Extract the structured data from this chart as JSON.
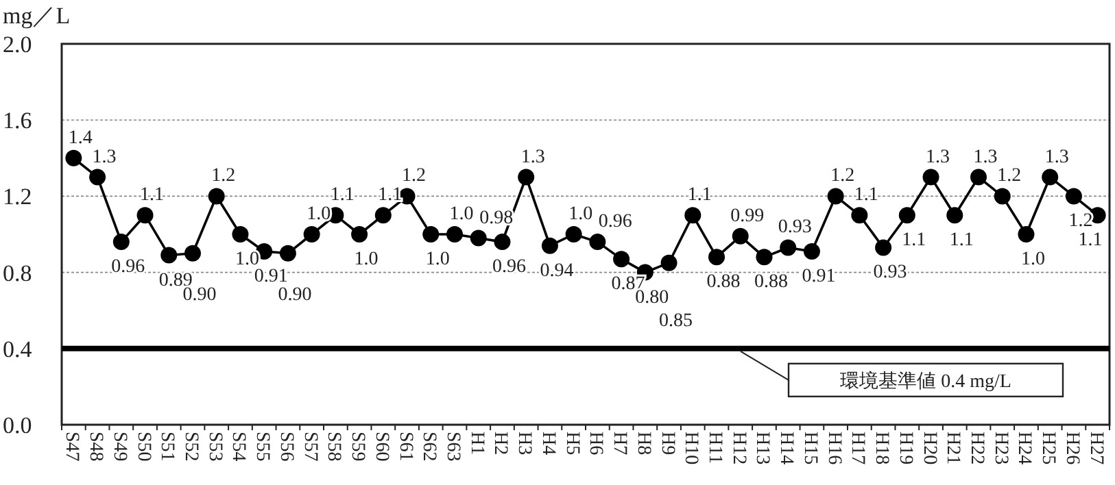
{
  "chart_data": {
    "type": "line",
    "ylabel": "mg／L",
    "categories": [
      "S47",
      "S48",
      "S49",
      "S50",
      "S51",
      "S52",
      "S53",
      "S54",
      "S55",
      "S56",
      "S57",
      "S58",
      "S59",
      "S60",
      "S61",
      "S62",
      "S63",
      "H1",
      "H2",
      "H3",
      "H4",
      "H5",
      "H6",
      "H7",
      "H8",
      "H9",
      "H10",
      "H11",
      "H12",
      "H13",
      "H14",
      "H15",
      "H16",
      "H17",
      "H18",
      "H19",
      "H20",
      "H21",
      "H22",
      "H23",
      "H24",
      "H25",
      "H26",
      "H27"
    ],
    "series": [
      {
        "color": "#000000",
        "values": [
          1.4,
          1.3,
          0.96,
          1.1,
          0.89,
          0.9,
          1.2,
          1.0,
          0.91,
          0.9,
          1.0,
          1.1,
          1.0,
          1.1,
          1.2,
          1.0,
          1.0,
          0.98,
          0.96,
          1.3,
          0.94,
          1.0,
          0.96,
          0.87,
          0.8,
          0.85,
          1.1,
          0.88,
          0.99,
          0.88,
          0.93,
          0.91,
          1.2,
          1.1,
          0.93,
          1.1,
          1.3,
          1.1,
          1.3,
          1.2,
          1.0,
          1.3,
          1.2,
          1.1
        ],
        "value_labels": [
          "1.4",
          "1.3",
          "0.96",
          "1.1",
          "0.89",
          "0.90",
          "1.2",
          "1.0",
          "0.91",
          "0.90",
          "1.0",
          "1.1",
          "1.0",
          "1.1",
          "1.2",
          "1.0",
          "1.0",
          "0.98",
          "0.96",
          "1.3",
          "0.94",
          "1.0",
          "0.96",
          "0.87",
          "0.80",
          "0.85",
          "1.1",
          "0.88",
          "0.99",
          "0.88",
          "0.93",
          "0.91",
          "1.2",
          "1.1",
          "0.93",
          "1.1",
          "1.3",
          "1.1",
          "1.3",
          "1.2",
          "1.0",
          "1.3",
          "1.2",
          "1.1"
        ]
      }
    ],
    "ylim": [
      0,
      2.0
    ],
    "yticks": [
      {
        "value": 0,
        "label": "0.0"
      },
      {
        "value": 0.4,
        "label": "0.4"
      },
      {
        "value": 0.8,
        "label": "0.8"
      },
      {
        "value": 1.2,
        "label": "1.2"
      },
      {
        "value": 1.6,
        "label": "1.6"
      },
      {
        "value": 2.0,
        "label": "2.0"
      }
    ],
    "grid": "y",
    "marker": "circle",
    "line_style": "solid",
    "ref_lines": [
      {
        "axis": "y",
        "value": 0.4,
        "label": "環境基準値 0.4 mg/L",
        "color": "#000000"
      }
    ]
  }
}
